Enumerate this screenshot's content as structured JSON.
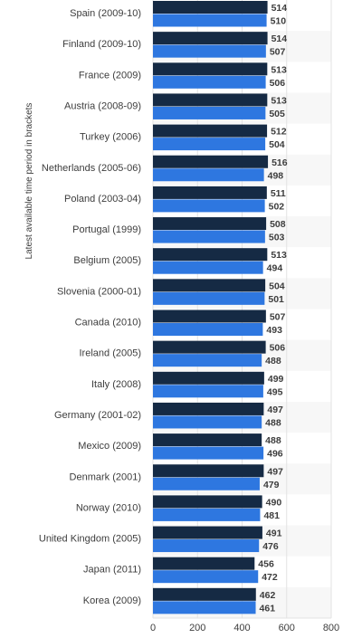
{
  "chart_data": {
    "type": "bar",
    "orientation": "horizontal",
    "ylabel": "Latest available time period in brackets",
    "xlabel": "",
    "xlim": [
      0,
      800
    ],
    "x_ticks": [
      0,
      200,
      400,
      600,
      800
    ],
    "grid": true,
    "colors": {
      "series_1": "#152a44",
      "series_2": "#2e77e0",
      "band": "#f7f7f7",
      "grid": "#e3e3e3",
      "label": "#3d3d3d"
    },
    "categories": [
      "Spain (2009-10)",
      "Finland (2009-10)",
      "France (2009)",
      "Austria (2008-09)",
      "Turkey (2006)",
      "Netherlands (2005-06)",
      "Poland (2003-04)",
      "Portugal (1999)",
      "Belgium (2005)",
      "Slovenia (2000-01)",
      "Canada (2010)",
      "Ireland (2005)",
      "Italy (2008)",
      "Germany (2001-02)",
      "Mexico (2009)",
      "Denmark (2001)",
      "Norway (2010)",
      "United Kingdom (2005)",
      "Japan (2011)",
      "Korea (2009)"
    ],
    "series": [
      {
        "values": [
          514,
          514,
          513,
          513,
          512,
          516,
          511,
          508,
          513,
          504,
          507,
          506,
          499,
          497,
          488,
          497,
          490,
          491,
          456,
          462
        ]
      },
      {
        "values": [
          510,
          507,
          506,
          505,
          504,
          498,
          502,
          503,
          494,
          501,
          493,
          488,
          495,
          488,
          496,
          479,
          481,
          476,
          472,
          461
        ]
      }
    ]
  }
}
